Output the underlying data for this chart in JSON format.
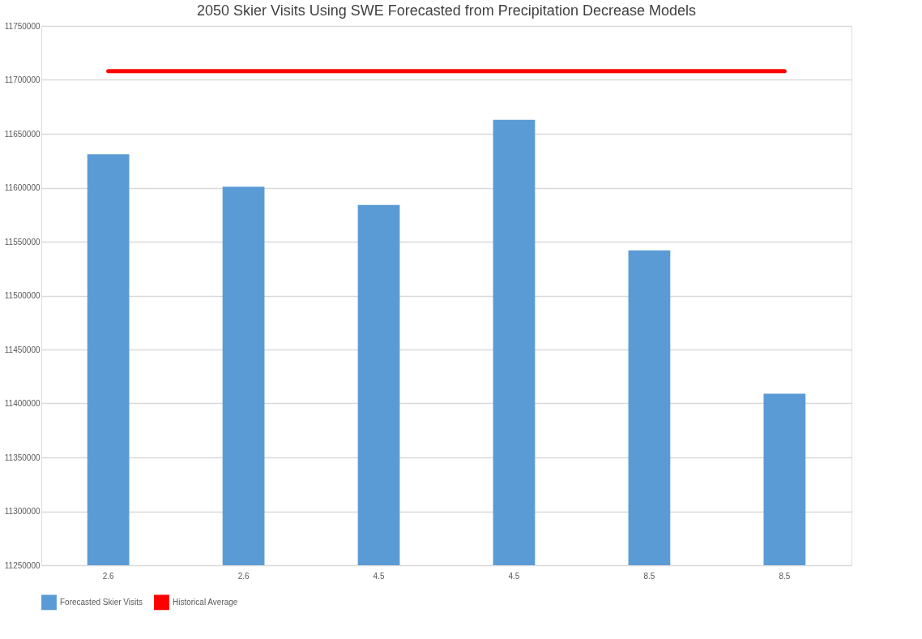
{
  "chart_data": {
    "type": "bar",
    "title": "2050 Skier Visits Using SWE Forecasted from Precipitation Decrease Models",
    "categories": [
      "2.6",
      "2.6",
      "4.5",
      "4.5",
      "8.5",
      "8.5"
    ],
    "series": [
      {
        "name": "Forecasted Skier Visits",
        "color": "#5b9bd5",
        "values": [
          11631000,
          11601000,
          11584000,
          11663000,
          11542000,
          11409000
        ]
      },
      {
        "name": "Historical Average",
        "type": "line",
        "color": "#ff0000",
        "values": [
          11708000,
          11708000,
          11708000,
          11708000,
          11708000,
          11708000
        ]
      }
    ],
    "ylim": [
      11250000,
      11750000
    ],
    "yticks": [
      11250000,
      11300000,
      11350000,
      11400000,
      11450000,
      11500000,
      11550000,
      11600000,
      11650000,
      11700000,
      11750000
    ],
    "grid": "y",
    "legend": "bottom"
  }
}
